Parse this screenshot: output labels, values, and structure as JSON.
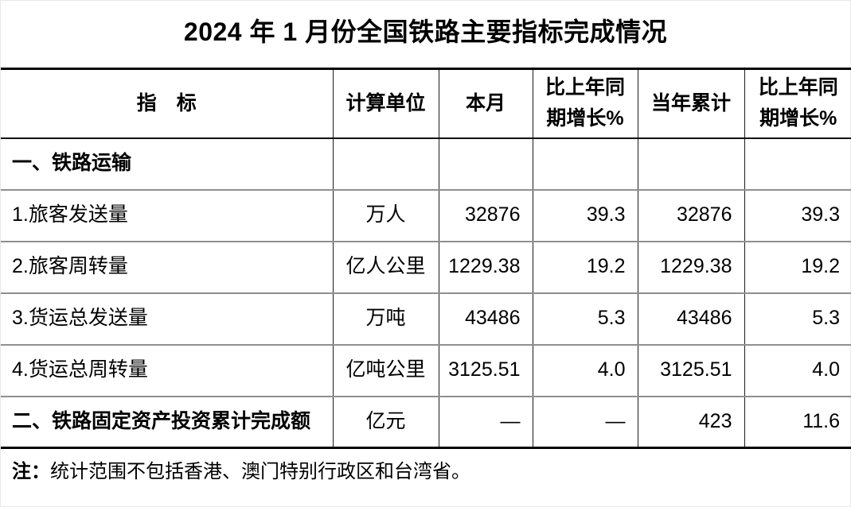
{
  "title": "2024 年 1 月份全国铁路主要指标完成情况",
  "table": {
    "columns": [
      "指　标",
      "计算单位",
      "本月",
      "比上年同\n期增长%",
      "当年累计",
      "比上年同\n期增长%"
    ],
    "rows": [
      {
        "label": "一、铁路运输",
        "unit": "",
        "month": "",
        "month_growth": "",
        "ytd": "",
        "ytd_growth": ""
      },
      {
        "label": "1.旅客发送量",
        "unit": "万人",
        "month": "32876",
        "month_growth": "39.3",
        "ytd": "32876",
        "ytd_growth": "39.3"
      },
      {
        "label": "2.旅客周转量",
        "unit": "亿人公里",
        "month": "1229.38",
        "month_growth": "19.2",
        "ytd": "1229.38",
        "ytd_growth": "19.2"
      },
      {
        "label": "3.货运总发送量",
        "unit": "万吨",
        "month": "43486",
        "month_growth": "5.3",
        "ytd": "43486",
        "ytd_growth": "5.3"
      },
      {
        "label": "4.货运总周转量",
        "unit": "亿吨公里",
        "month": "3125.51",
        "month_growth": "4.0",
        "ytd": "3125.51",
        "ytd_growth": "4.0"
      },
      {
        "label": "二、铁路固定资产投资累计完成额",
        "unit": "亿元",
        "month": "—",
        "month_growth": "—",
        "ytd": "423",
        "ytd_growth": "11.6"
      }
    ]
  },
  "note": {
    "prefix": "注：",
    "text": "统计范围不包括香港、澳门特别行政区和台湾省。"
  }
}
